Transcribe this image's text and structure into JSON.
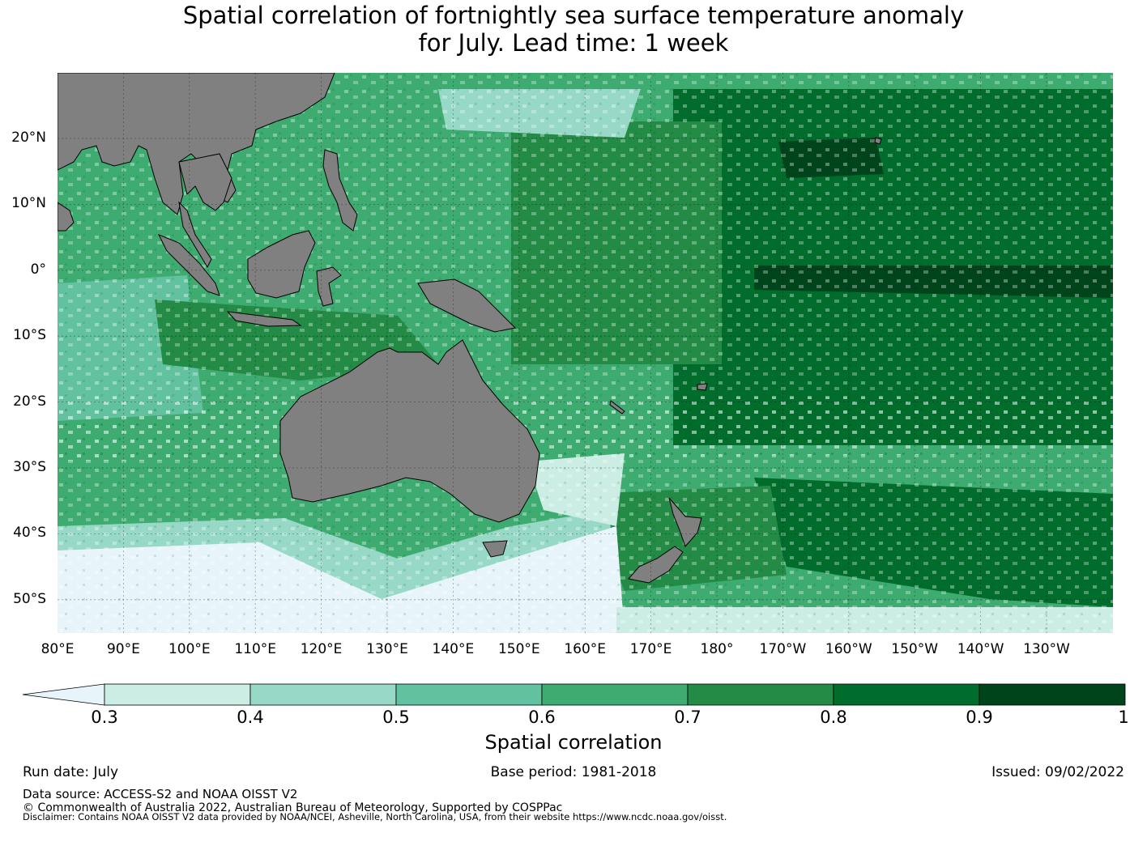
{
  "title_line1": "Spatial correlation of fortnightly sea surface temperature anomaly",
  "title_line2": "for July. Lead time: 1 week",
  "map": {
    "lon_ticks": [
      "80°E",
      "90°E",
      "100°E",
      "110°E",
      "120°E",
      "130°E",
      "140°E",
      "150°E",
      "160°E",
      "170°E",
      "180°",
      "170°W",
      "160°W",
      "150°W",
      "140°W",
      "130°W"
    ],
    "lat_ticks": [
      "20°N",
      "10°N",
      "0°",
      "10°S",
      "20°S",
      "30°S",
      "40°S",
      "50°S"
    ],
    "lon_range": [
      80,
      240
    ],
    "lat_range": [
      -55,
      30
    ],
    "land_color": "#808080",
    "ocean_colors": [
      "#e7f5fa",
      "#cbede4",
      "#97d8c6",
      "#62c19f",
      "#3eab71",
      "#238b46",
      "#006d2c",
      "#00441b"
    ]
  },
  "colorbar": {
    "ticks": [
      "0.3",
      "0.4",
      "0.5",
      "0.6",
      "0.7",
      "0.8",
      "0.9",
      "1"
    ],
    "colors": [
      "#cbede4",
      "#97d8c6",
      "#62c19f",
      "#3eab71",
      "#238b46",
      "#006d2c",
      "#00441b"
    ],
    "under_color": "#e7f5fa",
    "label": "Spatial correlation"
  },
  "footer": {
    "run_date": "Run date: July",
    "base_period": "Base period: 1981-2018",
    "issued": "Issued: 09/02/2022",
    "data_source": "Data source: ACCESS-S2 and NOAA OISST V2",
    "copyright": "© Commonwealth of Australia 2022, Australian Bureau of Meteorology, Supported by COSPPac",
    "disclaimer": "Disclaimer: Contains NOAA OISST V2 data provided by NOAA/NCEI, Asheville, North Carolina, USA, from their website https://www.ncdc.noaa.gov/oisst."
  }
}
